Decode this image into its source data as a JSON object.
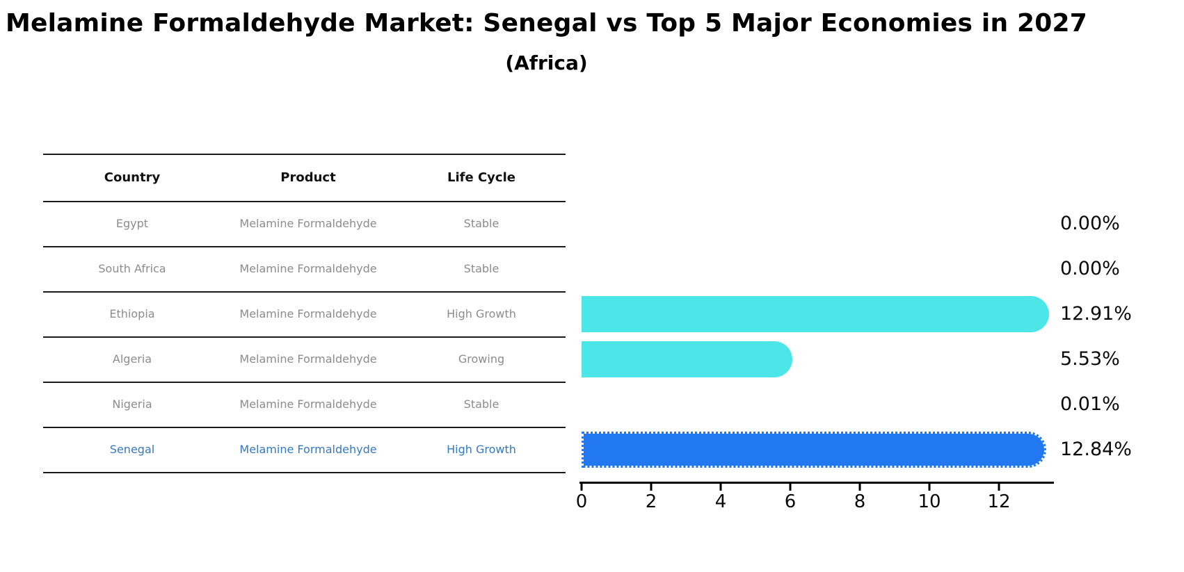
{
  "title": "Melamine Formaldehyde Market: Senegal vs Top 5 Major Economies in 2027",
  "subtitle": "(Africa)",
  "table": {
    "headers": {
      "country": "Country",
      "product": "Product",
      "life_cycle": "Life Cycle"
    },
    "rows": [
      {
        "country": "Egypt",
        "product": "Melamine Formaldehyde",
        "life_cycle": "Stable",
        "value_label": "0.00%"
      },
      {
        "country": "South Africa",
        "product": "Melamine Formaldehyde",
        "life_cycle": "Stable",
        "value_label": "0.00%"
      },
      {
        "country": "Ethiopia",
        "product": "Melamine Formaldehyde",
        "life_cycle": "High Growth",
        "value_label": "12.91%"
      },
      {
        "country": "Algeria",
        "product": "Melamine Formaldehyde",
        "life_cycle": "Growing",
        "value_label": "5.53%"
      },
      {
        "country": "Nigeria",
        "product": "Melamine Formaldehyde",
        "life_cycle": "Stable",
        "value_label": "0.01%"
      },
      {
        "country": "Senegal",
        "product": "Melamine Formaldehyde",
        "life_cycle": "High Growth",
        "value_label": "12.84%"
      }
    ]
  },
  "chart_data": {
    "type": "bar",
    "orientation": "horizontal",
    "title": "Melamine Formaldehyde Market: Senegal vs Top 5 Major Economies in 2027 (Africa)",
    "categories": [
      "Egypt",
      "South Africa",
      "Ethiopia",
      "Algeria",
      "Nigeria",
      "Senegal"
    ],
    "values": [
      0.0,
      0.0,
      12.91,
      5.53,
      0.01,
      12.84
    ],
    "value_labels": [
      "0.00%",
      "0.00%",
      "12.91%",
      "5.53%",
      "0.01%",
      "12.84%"
    ],
    "x_ticks": [
      0,
      2,
      4,
      6,
      8,
      10,
      12
    ],
    "xlim": [
      0,
      13.56
    ],
    "grid": false,
    "legend": false,
    "bar_color": "#4CE5E8",
    "highlight_color": "#2178F0",
    "highlight_index": 5,
    "highlight_category": "Senegal"
  },
  "colors": {
    "row_text": "#8c8c8c",
    "highlight_text": "#3579c0",
    "axis": "#000000",
    "background": "#ffffff"
  }
}
